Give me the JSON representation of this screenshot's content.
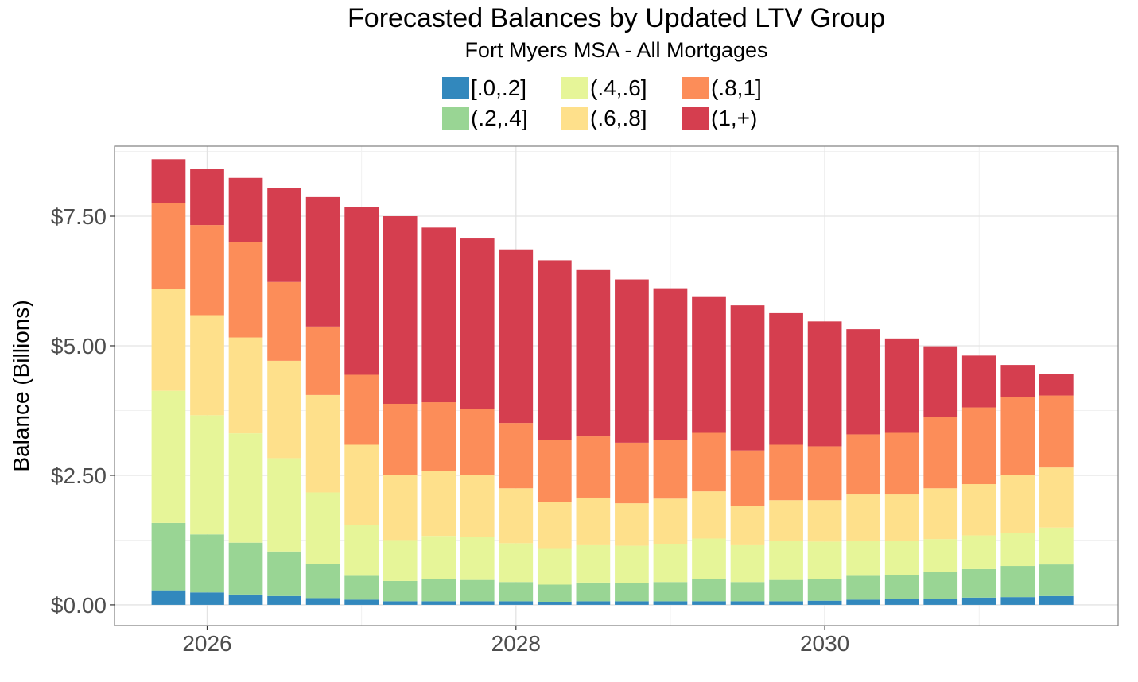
{
  "chart_data": {
    "type": "bar",
    "stacked": true,
    "title": "Forecasted Balances by Updated LTV Group",
    "subtitle": "Fort Myers MSA - All Mortgages",
    "xlabel": "",
    "ylabel": "Balance (Billions)",
    "legend_position": "top",
    "grid": true,
    "xlim": [
      2025.4,
      2031.9
    ],
    "ylim": [
      -0.4,
      8.85
    ],
    "y_ticks": [
      0,
      2.5,
      5,
      7.5
    ],
    "y_tick_labels": [
      "$0.00",
      "$2.50",
      "$5.00",
      "$7.50"
    ],
    "x_ticks": [
      2026,
      2028,
      2030
    ],
    "x_tick_labels": [
      "2026",
      "2028",
      "2030"
    ],
    "x": [
      2025.75,
      2026.0,
      2026.25,
      2026.5,
      2026.75,
      2027.0,
      2027.25,
      2027.5,
      2027.75,
      2028.0,
      2028.25,
      2028.5,
      2028.75,
      2029.0,
      2029.25,
      2029.5,
      2029.75,
      2030.0,
      2030.25,
      2030.5,
      2030.75,
      2031.0,
      2031.25,
      2031.5
    ],
    "series": [
      {
        "name": "[.0,.2]",
        "color": "#3288BD",
        "values": [
          0.28,
          0.24,
          0.2,
          0.17,
          0.13,
          0.1,
          0.07,
          0.07,
          0.07,
          0.07,
          0.06,
          0.07,
          0.07,
          0.07,
          0.07,
          0.07,
          0.07,
          0.08,
          0.1,
          0.11,
          0.12,
          0.14,
          0.15,
          0.17
        ]
      },
      {
        "name": "(.2,.4]",
        "color": "#99D594",
        "values": [
          1.3,
          1.12,
          1.0,
          0.86,
          0.66,
          0.46,
          0.39,
          0.42,
          0.41,
          0.37,
          0.33,
          0.36,
          0.35,
          0.37,
          0.42,
          0.37,
          0.41,
          0.42,
          0.46,
          0.47,
          0.52,
          0.55,
          0.6,
          0.61
        ]
      },
      {
        "name": "(.4,.6]",
        "color": "#E6F598",
        "values": [
          2.55,
          2.3,
          2.11,
          1.8,
          1.38,
          0.98,
          0.79,
          0.84,
          0.83,
          0.75,
          0.69,
          0.72,
          0.72,
          0.74,
          0.79,
          0.71,
          0.75,
          0.72,
          0.67,
          0.66,
          0.63,
          0.65,
          0.63,
          0.71
        ]
      },
      {
        "name": "(.6,.8]",
        "color": "#FEE08B",
        "values": [
          1.96,
          1.93,
          1.85,
          1.88,
          1.88,
          1.55,
          1.26,
          1.26,
          1.2,
          1.06,
          0.9,
          0.92,
          0.82,
          0.87,
          0.91,
          0.76,
          0.79,
          0.8,
          0.9,
          0.89,
          0.98,
          0.99,
          1.13,
          1.16
        ]
      },
      {
        "name": "(.8,1]",
        "color": "#FC8D59",
        "values": [
          1.67,
          1.74,
          1.84,
          1.52,
          1.32,
          1.35,
          1.37,
          1.32,
          1.27,
          1.26,
          1.2,
          1.18,
          1.17,
          1.13,
          1.13,
          1.07,
          1.07,
          1.04,
          1.16,
          1.19,
          1.37,
          1.48,
          1.5,
          1.39
        ]
      },
      {
        "name": "(1,+)",
        "color": "#D53E4F",
        "values": [
          0.84,
          1.08,
          1.24,
          1.82,
          2.5,
          3.24,
          3.62,
          3.37,
          3.29,
          3.35,
          3.47,
          3.21,
          3.15,
          2.93,
          2.62,
          2.8,
          2.54,
          2.41,
          2.03,
          1.82,
          1.37,
          1.0,
          0.62,
          0.41
        ]
      }
    ]
  }
}
